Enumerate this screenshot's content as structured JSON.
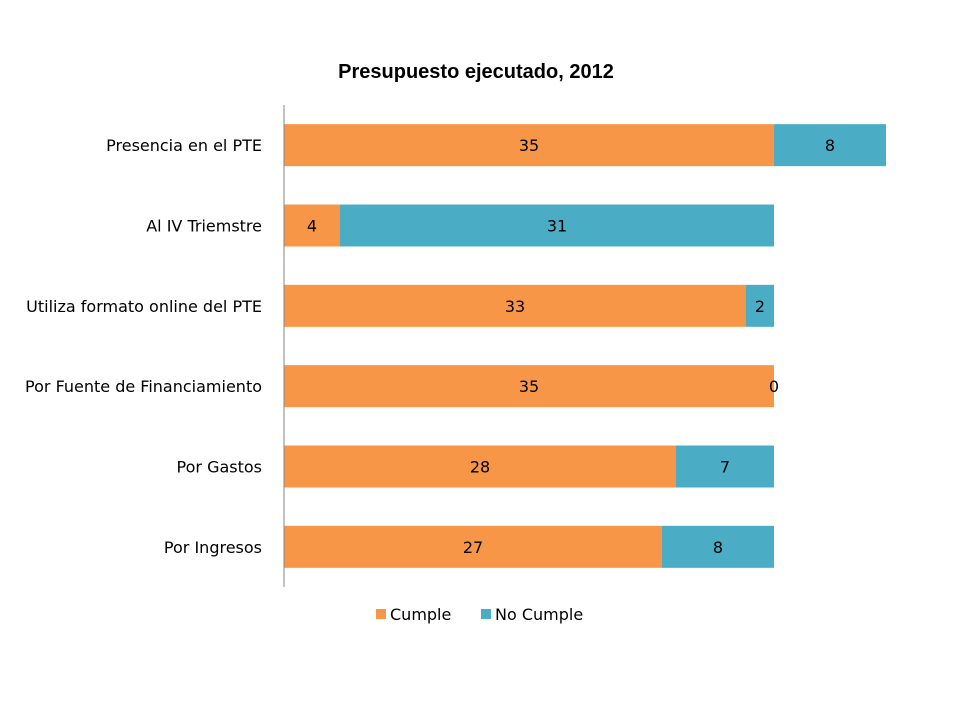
{
  "chart_data": {
    "type": "bar",
    "orientation": "horizontal",
    "stacked": true,
    "title": "Presupuesto ejecutado, 2012",
    "xlabel": "",
    "ylabel": "",
    "categories": [
      "Presencia en el PTE",
      "Al IV Triemstre",
      "Utiliza formato online del PTE",
      "Por Fuente de Financiamiento",
      "Por Gastos",
      "Por Ingresos"
    ],
    "series": [
      {
        "name": "Cumple",
        "values": [
          35,
          4,
          33,
          35,
          28,
          27
        ],
        "color": "#F79646"
      },
      {
        "name": "No Cumple",
        "values": [
          8,
          31,
          2,
          0,
          7,
          8
        ],
        "color": "#4BACC6"
      }
    ],
    "xlim": [
      0,
      45
    ],
    "grid": false,
    "legend": "bottom"
  }
}
